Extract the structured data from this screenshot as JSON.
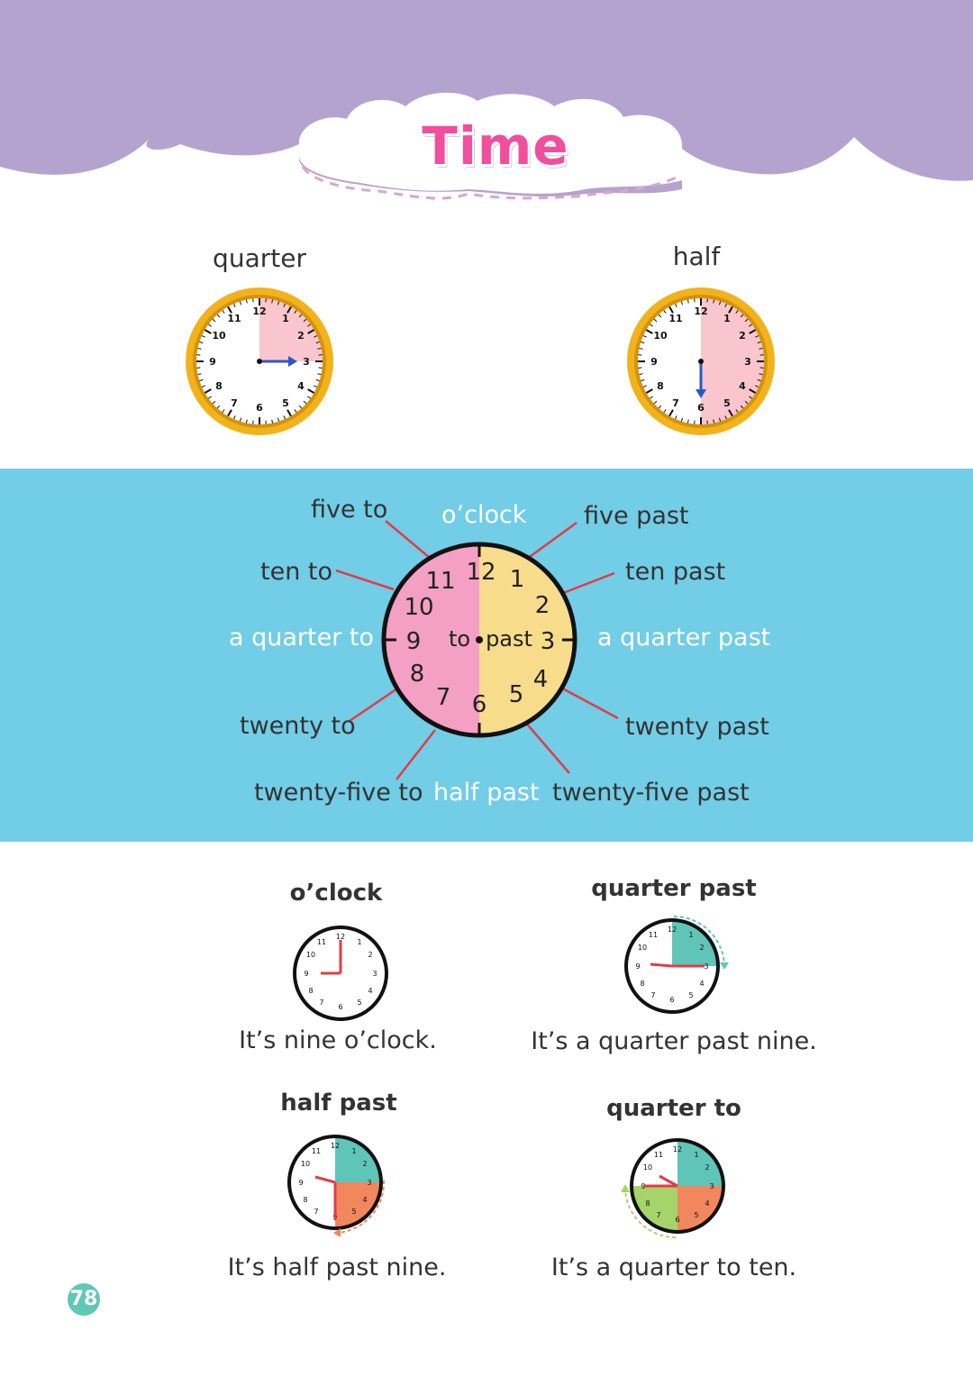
{
  "title": "Time",
  "top_clocks": [
    {
      "label": "quarter",
      "minute_hand_points_to": 3
    },
    {
      "label": "half",
      "minute_hand_points_to": 6
    }
  ],
  "wheel": {
    "top_center": "o’clock",
    "bottom_center": "half past",
    "left_middle": "a quarter to",
    "right_middle": "a quarter past",
    "left": [
      "five to",
      "ten to",
      "twenty to",
      "twenty-five to"
    ],
    "right": [
      "five past",
      "ten past",
      "twenty past",
      "twenty-five past"
    ],
    "center_left": "to",
    "center_right": "past",
    "numbers": [
      "12",
      "1",
      "2",
      "3",
      "4",
      "5",
      "6",
      "7",
      "8",
      "9",
      "10",
      "11"
    ]
  },
  "examples": [
    {
      "heading": "o’clock",
      "caption": "It’s nine o’clock."
    },
    {
      "heading": "quarter past",
      "caption": "It’s a quarter past nine."
    },
    {
      "heading": "half past",
      "caption": "It’s half past nine."
    },
    {
      "heading": "quarter to",
      "caption": "It’s a quarter to ten."
    }
  ],
  "page_number": "78",
  "colors": {
    "header_purple": "#b5a3cf",
    "band_blue": "#72cde6",
    "title_pink": "#ef4f9c",
    "clock_rim_gold": "#f2b21b",
    "past_yellow": "#f7dc8c",
    "to_pink": "#f3a0c4",
    "teal": "#5fc5b8",
    "orange": "#f2865d",
    "green": "#a5d46a",
    "line_red": "#e23c46"
  }
}
